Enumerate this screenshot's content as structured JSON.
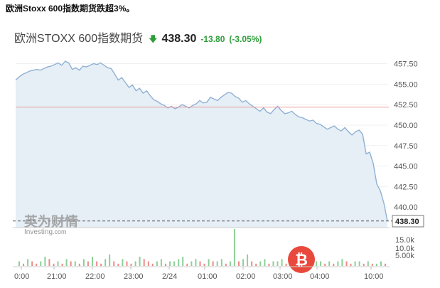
{
  "headline": "欧洲Stoxx 600指数期货跌超3%。",
  "quote": {
    "name": "欧洲STOXX 600指数期货",
    "arrow_icon": "down-arrow-icon",
    "last": "438.30",
    "change": "-13.80",
    "change_pct": "(-3.05%)",
    "up_color": "#2e9d3a"
  },
  "watermark": {
    "chinese": "英为财情",
    "english": "Investing",
    "english_suffix": ".com"
  },
  "colors": {
    "line": "#8fb1d3",
    "fill": "#e6eef6",
    "ref_line": "#e99b9b",
    "vol_up": "#8ccf97",
    "vol_down": "#ee8a8a",
    "badge": "#e8493c"
  },
  "chart_data": {
    "type": "area",
    "title": "",
    "xlabel": "",
    "ylabel": "",
    "ylim": [
      437.5,
      458.5
    ],
    "y_ticks": [
      "457.50",
      "455.00",
      "452.50",
      "450.00",
      "447.50",
      "445.00",
      "442.50",
      "440.00"
    ],
    "x_ticks": [
      "0:00",
      "21:00",
      "22:00",
      "23:00",
      "2/24",
      "01:00",
      "02:00",
      "03:00",
      "04:00",
      "10:00"
    ],
    "reference_line": 452.2,
    "last_price_label": "438.30",
    "volume_ticks": [
      "15.0k",
      "10.0k",
      "5.00k"
    ],
    "series": [
      {
        "values": [
          455.5,
          455.9,
          456.2,
          456.4,
          456.6,
          456.7,
          456.8,
          456.7,
          456.9,
          457.1,
          457.2,
          457.4,
          457.6,
          457.3,
          457.8,
          457.6,
          456.8,
          457.0,
          456.7,
          457.2,
          457.1,
          457.3,
          457.5,
          457.4,
          457.6,
          457.3,
          457.0,
          456.9,
          456.2,
          455.5,
          455.8,
          455.2,
          454.6,
          454.9,
          454.2,
          454.5,
          453.9,
          454.2,
          453.6,
          453.1,
          452.9,
          452.6,
          452.4,
          452.1,
          452.3,
          452.0,
          452.2,
          452.5,
          452.3,
          452.1,
          452.4,
          452.6,
          453.0,
          452.7,
          452.8,
          453.4,
          453.2,
          453.0,
          453.4,
          453.7,
          454.0,
          453.9,
          453.5,
          453.3,
          452.8,
          453.0,
          452.6,
          452.3,
          452.0,
          451.7,
          452.1,
          451.6,
          451.4,
          451.9,
          452.3,
          451.8,
          451.4,
          451.5,
          451.7,
          451.3,
          451.0,
          450.9,
          450.7,
          450.5,
          450.6,
          450.2,
          450.1,
          449.8,
          449.5,
          449.7,
          449.9,
          449.5,
          449.3,
          449.7,
          449.2,
          448.8,
          449.2,
          449.4,
          448.9,
          446.5,
          446.7,
          445.3,
          442.8,
          442.0,
          440.5,
          438.3
        ]
      }
    ],
    "volume": {
      "values": [
        2,
        1,
        3,
        2,
        1,
        2,
        4,
        3,
        1,
        2,
        1,
        3,
        2,
        2,
        1,
        3,
        2,
        4,
        2,
        1,
        3,
        5,
        2,
        1,
        3,
        2,
        1,
        2,
        4,
        3,
        2,
        1,
        2,
        3,
        1,
        2,
        2,
        3,
        4,
        1,
        2,
        3,
        2,
        1,
        3,
        2,
        2,
        3,
        1,
        2,
        16,
        2,
        3,
        5,
        2,
        1,
        2,
        3,
        1,
        2,
        2,
        3,
        1,
        2,
        2,
        1,
        2,
        3,
        1,
        2,
        2,
        1,
        2,
        1,
        2,
        3,
        2,
        1,
        2,
        2,
        1,
        2,
        1,
        1,
        2,
        1
      ]
    }
  }
}
